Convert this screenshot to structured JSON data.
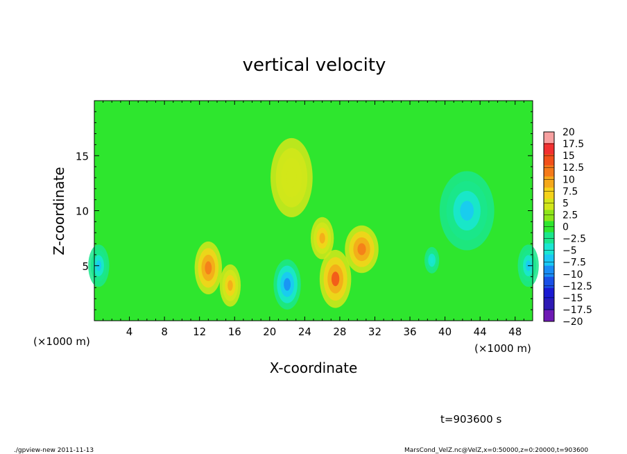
{
  "chart_data": {
    "type": "heatmap",
    "title": "vertical velocity",
    "xlabel": "X-coordinate",
    "ylabel": "Z-coordinate",
    "x_unit_left": "(×1000 m)",
    "x_unit_right": "(×1000 m)",
    "xlim": [
      0,
      50
    ],
    "ylim": [
      0,
      20
    ],
    "x_ticks": [
      4,
      8,
      12,
      16,
      20,
      24,
      28,
      32,
      36,
      40,
      44,
      48
    ],
    "x_tick_labels": [
      "4",
      "8",
      "12",
      "16",
      "20",
      "24",
      "28",
      "32",
      "36",
      "40",
      "44",
      "48"
    ],
    "y_ticks": [
      5,
      10,
      15
    ],
    "y_tick_labels": [
      "5",
      "10",
      "15"
    ],
    "colorbar": {
      "levels": [
        20,
        17.5,
        15,
        12.5,
        10,
        7.5,
        5,
        2.5,
        0,
        -2.5,
        -5,
        -7.5,
        -10,
        -12.5,
        -15,
        -17.5,
        -20
      ],
      "labels": [
        "20",
        "17.5",
        "15",
        "12.5",
        "10",
        "7.5",
        "5",
        "2.5",
        "0",
        "−2.5",
        "−5",
        "−7.5",
        "−10",
        "−12.5",
        "−15",
        "−17.5",
        "−20"
      ],
      "colors": [
        "#f7a0a0",
        "#f23030",
        "#f2501a",
        "#f57a1a",
        "#f5a81a",
        "#f5d21a",
        "#d2e61a",
        "#8ee61a",
        "#2ee62e",
        "#1ae68c",
        "#1ae6d2",
        "#1ac8f5",
        "#1a8cf5",
        "#1a50e6",
        "#1a1ad2",
        "#2e1ab4",
        "#6e1ab4"
      ]
    },
    "features": [
      {
        "x": 13.0,
        "z": 4.8,
        "value": 12,
        "sx": 1.3,
        "sz": 2.0
      },
      {
        "x": 15.5,
        "z": 3.2,
        "value": 9,
        "sx": 1.0,
        "sz": 1.6
      },
      {
        "x": 22.0,
        "z": 3.3,
        "value": -11,
        "sx": 1.3,
        "sz": 1.9
      },
      {
        "x": 27.5,
        "z": 3.8,
        "value": 13,
        "sx": 1.5,
        "sz": 2.2
      },
      {
        "x": 30.5,
        "z": 6.5,
        "value": 11,
        "sx": 1.6,
        "sz": 1.8
      },
      {
        "x": 26.0,
        "z": 7.5,
        "value": 8,
        "sx": 1.1,
        "sz": 1.6
      },
      {
        "x": 42.5,
        "z": 10.0,
        "value": -10,
        "sx": 2.6,
        "sz": 3.0
      },
      {
        "x": 0.5,
        "z": 5.0,
        "value": -9,
        "sx": 1.0,
        "sz": 1.6
      },
      {
        "x": 49.5,
        "z": 5.0,
        "value": -9,
        "sx": 1.0,
        "sz": 1.6
      },
      {
        "x": 38.5,
        "z": 5.5,
        "value": -7,
        "sx": 0.7,
        "sz": 1.0
      },
      {
        "x": 22.5,
        "z": 13.0,
        "value": 4,
        "sx": 2.0,
        "sz": 3.0
      }
    ],
    "time_label": "t=903600 s"
  },
  "footer": {
    "left": "./gpview-new  2011-11-13",
    "right": "MarsCond_VelZ.nc@VelZ,x=0:50000,z=0:20000,t=903600"
  }
}
